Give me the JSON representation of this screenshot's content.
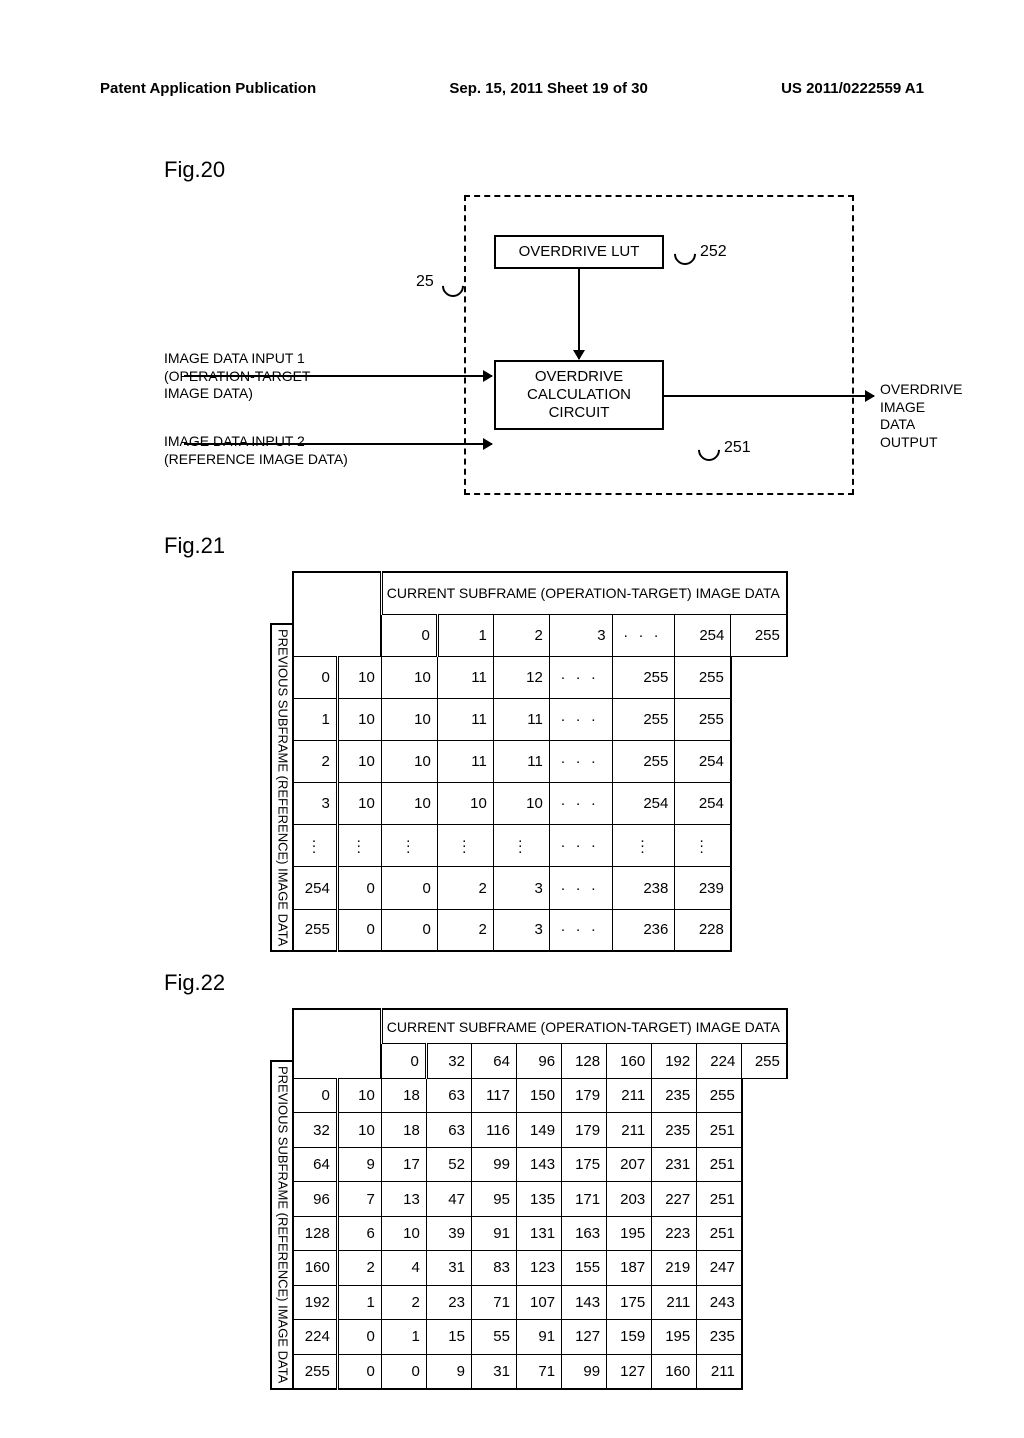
{
  "header": {
    "left": "Patent Application Publication",
    "mid": "Sep. 15, 2011  Sheet 19 of 30",
    "right": "US 2011/0222559 A1"
  },
  "fig20": {
    "label": "Fig.20",
    "lut": "OVERDRIVE LUT",
    "calc_l1": "OVERDRIVE",
    "calc_l2": "CALCULATION",
    "calc_l3": "CIRCUIT",
    "in1_l1": "IMAGE DATA INPUT 1",
    "in1_l2": "(OPERATION-TARGET",
    "in1_l3": "IMAGE DATA)",
    "in2_l1": "IMAGE DATA INPUT 2",
    "in2_l2": "(REFERENCE IMAGE DATA)",
    "out_l1": "OVERDRIVE IMAGE",
    "out_l2": "DATA OUTPUT",
    "ref25": "25",
    "ref251": "251",
    "ref252": "252"
  },
  "fig21": {
    "label": "Fig.21",
    "x_header": "CURRENT SUBFRAME (OPERATION-TARGET) IMAGE DATA",
    "y_header": "PREVIOUS SUBFRAME\n(REFERENCE) IMAGE DATA",
    "cols": [
      "0",
      "1",
      "2",
      "3",
      "· · ·",
      "254",
      "255"
    ],
    "rows": [
      {
        "h": "0",
        "c": [
          "10",
          "10",
          "11",
          "12",
          "· · ·",
          "255",
          "255"
        ]
      },
      {
        "h": "1",
        "c": [
          "10",
          "10",
          "11",
          "11",
          "· · ·",
          "255",
          "255"
        ]
      },
      {
        "h": "2",
        "c": [
          "10",
          "10",
          "11",
          "11",
          "· · ·",
          "255",
          "254"
        ]
      },
      {
        "h": "3",
        "c": [
          "10",
          "10",
          "10",
          "10",
          "· · ·",
          "254",
          "254"
        ]
      },
      {
        "h": "⋮",
        "c": [
          "⋮",
          "⋮",
          "⋮",
          "⋮",
          "· · ·",
          "⋮",
          "⋮"
        ],
        "vdots": true
      },
      {
        "h": "254",
        "c": [
          "0",
          "0",
          "2",
          "3",
          "· · ·",
          "238",
          "239"
        ]
      },
      {
        "h": "255",
        "c": [
          "0",
          "0",
          "2",
          "3",
          "· · ·",
          "236",
          "228"
        ]
      }
    ]
  },
  "fig22": {
    "label": "Fig.22",
    "x_header": "CURRENT SUBFRAME (OPERATION-TARGET) IMAGE DATA",
    "y_header": "PREVIOUS SUBFRAME\n(REFERENCE) IMAGE DATA",
    "cols": [
      "0",
      "32",
      "64",
      "96",
      "128",
      "160",
      "192",
      "224",
      "255"
    ],
    "rows": [
      {
        "h": "0",
        "c": [
          "10",
          "18",
          "63",
          "117",
          "150",
          "179",
          "211",
          "235",
          "255"
        ]
      },
      {
        "h": "32",
        "c": [
          "10",
          "18",
          "63",
          "116",
          "149",
          "179",
          "211",
          "235",
          "251"
        ]
      },
      {
        "h": "64",
        "c": [
          "9",
          "17",
          "52",
          "99",
          "143",
          "175",
          "207",
          "231",
          "251"
        ]
      },
      {
        "h": "96",
        "c": [
          "7",
          "13",
          "47",
          "95",
          "135",
          "171",
          "203",
          "227",
          "251"
        ]
      },
      {
        "h": "128",
        "c": [
          "6",
          "10",
          "39",
          "91",
          "131",
          "163",
          "195",
          "223",
          "251"
        ]
      },
      {
        "h": "160",
        "c": [
          "2",
          "4",
          "31",
          "83",
          "123",
          "155",
          "187",
          "219",
          "247"
        ]
      },
      {
        "h": "192",
        "c": [
          "1",
          "2",
          "23",
          "71",
          "107",
          "143",
          "175",
          "211",
          "243"
        ]
      },
      {
        "h": "224",
        "c": [
          "0",
          "1",
          "15",
          "55",
          "91",
          "127",
          "159",
          "195",
          "235"
        ]
      },
      {
        "h": "255",
        "c": [
          "0",
          "0",
          "9",
          "31",
          "71",
          "99",
          "127",
          "160",
          "211"
        ]
      }
    ]
  }
}
